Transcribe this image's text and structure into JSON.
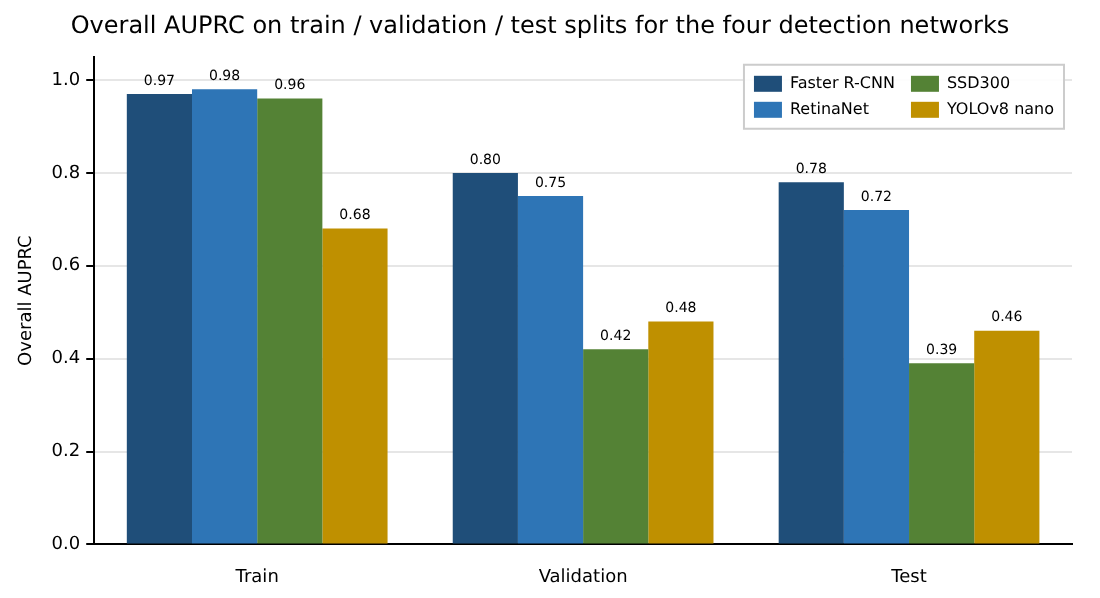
{
  "chart_data": {
    "type": "bar",
    "title": "Overall AUPRC on train / validation / test splits for the four detection networks",
    "ylabel": "Overall AUPRC",
    "categories": [
      "Train",
      "Validation",
      "Test"
    ],
    "series": [
      {
        "name": "Faster R-CNN",
        "color": "#1f4e79",
        "values": [
          0.97,
          0.8,
          0.78
        ],
        "value_labels": [
          "0.97",
          "0.80",
          "0.78"
        ]
      },
      {
        "name": "RetinaNet",
        "color": "#2e75b6",
        "values": [
          0.98,
          0.75,
          0.72
        ],
        "value_labels": [
          "0.98",
          "0.75",
          "0.72"
        ]
      },
      {
        "name": "SSD300",
        "color": "#548235",
        "values": [
          0.96,
          0.42,
          0.39
        ],
        "value_labels": [
          "0.96",
          "0.42",
          "0.39"
        ]
      },
      {
        "name": "YOLOv8 nano",
        "color": "#bf9000",
        "values": [
          0.68,
          0.48,
          0.46
        ],
        "value_labels": [
          "0.68",
          "0.48",
          "0.46"
        ]
      }
    ],
    "ylim": [
      0,
      1.05
    ],
    "yticks": [
      {
        "value": 0,
        "label": "0.0"
      },
      {
        "value": 0.2,
        "label": "0.2"
      },
      {
        "value": 0.4,
        "label": "0.4"
      },
      {
        "value": 0.6,
        "label": "0.6"
      },
      {
        "value": 0.8,
        "label": "0.8"
      },
      {
        "value": 1,
        "label": "1.0"
      }
    ],
    "grid": "y",
    "legend": "top right"
  }
}
